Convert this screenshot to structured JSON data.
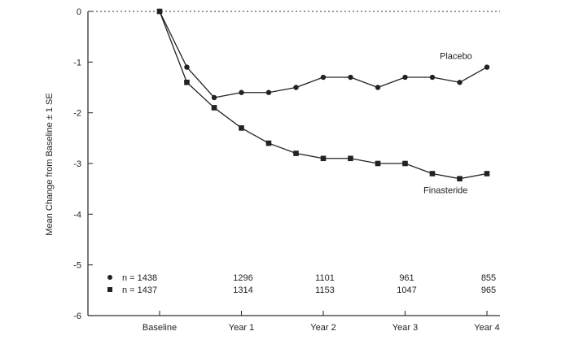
{
  "chart_data": {
    "type": "line",
    "title": "",
    "xlabel": "",
    "ylabel": "Mean Change from Baseline ± 1 SE",
    "ylim": [
      -6,
      0
    ],
    "yticks": [
      0,
      -1,
      -2,
      -3,
      -4,
      -5,
      -6
    ],
    "xlim": [
      0,
      4
    ],
    "x_tick_values": [
      0,
      1,
      2,
      3,
      4
    ],
    "x_tick_labels": [
      "Baseline",
      "Year 1",
      "Year 2",
      "Year 3",
      "Year 4"
    ],
    "grid": false,
    "reference_line": {
      "y": 0,
      "style": "dotted"
    },
    "series": [
      {
        "name": "Placebo",
        "marker": "circle",
        "x": [
          0,
          0.333,
          0.667,
          1.0,
          1.333,
          1.667,
          2.0,
          2.333,
          2.667,
          3.0,
          3.333,
          3.667,
          4.0
        ],
        "values": [
          0,
          -1.1,
          -1.7,
          -1.6,
          -1.6,
          -1.5,
          -1.3,
          -1.3,
          -1.5,
          -1.3,
          -1.3,
          -1.4,
          -1.1
        ],
        "n_label": "n = 1438",
        "n_counts": [
          "1296",
          "1101",
          "961",
          "855"
        ]
      },
      {
        "name": "Finasteride",
        "marker": "square",
        "x": [
          0,
          0.333,
          0.667,
          1.0,
          1.333,
          1.667,
          2.0,
          2.333,
          2.667,
          3.0,
          3.333,
          3.667,
          4.0
        ],
        "values": [
          0,
          -1.4,
          -1.9,
          -2.3,
          -2.6,
          -2.8,
          -2.9,
          -2.9,
          -3.0,
          -3.0,
          -3.2,
          -3.3,
          -3.2
        ],
        "n_label": "n = 1437",
        "n_counts": [
          "1314",
          "1153",
          "1047",
          "965"
        ]
      }
    ]
  }
}
